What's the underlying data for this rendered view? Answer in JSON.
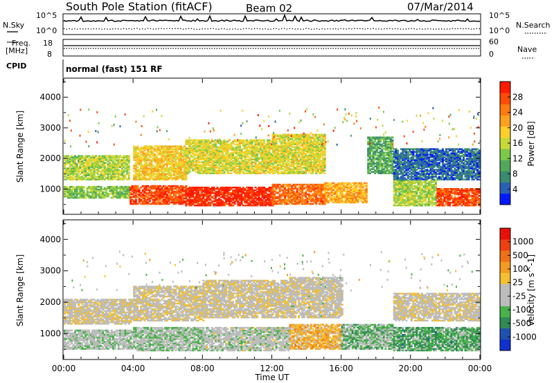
{
  "header": {
    "station": "South Pole Station (fitACF)",
    "beam": "Beam 02",
    "date": "07/Mar/2014"
  },
  "aux_panels": {
    "nsky_label": "N.Sky",
    "nsearch_label": "N.Search",
    "noise_ticks": [
      "10^5",
      "10^0"
    ],
    "freq_label_1": "Freq.",
    "freq_label_2": "[MHz]",
    "freq_ticks": [
      "18",
      "8"
    ],
    "nave_ticks": [
      "60",
      "0"
    ],
    "nave_label": "Nave",
    "cpid_label": "CPID",
    "cpid_value": "normal (fast) 151 RF"
  },
  "colors": {
    "power_scale": [
      "#0018ff",
      "#2a5fb8",
      "#3a8a70",
      "#52a85a",
      "#7cc84a",
      "#c8d838",
      "#ffd028",
      "#ffa020",
      "#ff7a10",
      "#ff4a08",
      "#ff1a00"
    ],
    "velocity_scale": [
      "#1030d0",
      "#2050b0",
      "#2f8a55",
      "#49b24a",
      "#bcbcbc",
      "#bcbcbc",
      "#f2c030",
      "#f39a20",
      "#f07018",
      "#ee4010",
      "#e81008"
    ]
  },
  "chart_data": [
    {
      "type": "heatmap",
      "name": "power",
      "ylabel": "Slant Range [km]",
      "yticks": [
        1000,
        2000,
        3000,
        4000
      ],
      "ylim": [
        200,
        4600
      ],
      "xlim": [
        0,
        24
      ],
      "colorbar_label": "Power [dB]",
      "colorbar_ticks": [
        "28",
        "24",
        "20",
        "16",
        "12",
        "8",
        "4"
      ],
      "colorbar_range": [
        0,
        30
      ],
      "bands": [
        {
          "t0": 0,
          "t1": 3.8,
          "r0": 700,
          "r1": 1100,
          "value": 12
        },
        {
          "t0": 0,
          "t1": 3.8,
          "r0": 1300,
          "r1": 2100,
          "value": 14
        },
        {
          "t0": 3.8,
          "t1": 7,
          "r0": 500,
          "r1": 1100,
          "value": 26
        },
        {
          "t0": 4,
          "t1": 7,
          "r0": 1300,
          "r1": 2400,
          "value": 18
        },
        {
          "t0": 7,
          "t1": 12,
          "r0": 450,
          "r1": 1050,
          "value": 28
        },
        {
          "t0": 7,
          "t1": 12,
          "r0": 1500,
          "r1": 2600,
          "value": 16
        },
        {
          "t0": 12,
          "t1": 15,
          "r0": 500,
          "r1": 1150,
          "value": 24
        },
        {
          "t0": 12,
          "t1": 15,
          "r0": 1500,
          "r1": 2800,
          "value": 16
        },
        {
          "t0": 15,
          "t1": 17.5,
          "r0": 550,
          "r1": 1200,
          "value": 20
        },
        {
          "t0": 17.5,
          "t1": 19,
          "r0": 1500,
          "r1": 2700,
          "value": 10
        },
        {
          "t0": 19,
          "t1": 21.5,
          "r0": 450,
          "r1": 1300,
          "value": 14
        },
        {
          "t0": 19,
          "t1": 24,
          "r0": 1300,
          "r1": 2300,
          "value": 5
        },
        {
          "t0": 21.5,
          "t1": 24,
          "r0": 450,
          "r1": 1000,
          "value": 26
        }
      ]
    },
    {
      "type": "heatmap",
      "name": "velocity",
      "ylabel": "Slant Range [km]",
      "yticks": [
        1000,
        2000,
        3000,
        4000
      ],
      "ylim": [
        200,
        4600
      ],
      "xlim": [
        0,
        24
      ],
      "xlabel": "Time UT",
      "xticks": [
        "00:00",
        "04:00",
        "08:00",
        "12:00",
        "16:00",
        "20:00",
        "00:00"
      ],
      "colorbar_label": "Velocity [m s^-1]",
      "colorbar_ticks": [
        "1000",
        "500",
        "100",
        "25",
        "-25",
        "-100",
        "-500",
        "-1000"
      ],
      "colorbar_range": [
        -1000,
        1000
      ],
      "bands": [
        {
          "t0": 0,
          "t1": 4,
          "r0": 500,
          "r1": 1100,
          "value": -150
        },
        {
          "t0": 0,
          "t1": 4,
          "r0": 1300,
          "r1": 2100,
          "value": 0
        },
        {
          "t0": 4,
          "t1": 8,
          "r0": 450,
          "r1": 1200,
          "value": -200
        },
        {
          "t0": 4,
          "t1": 8,
          "r0": 1400,
          "r1": 2500,
          "value": 0
        },
        {
          "t0": 8,
          "t1": 13,
          "r0": 450,
          "r1": 1200,
          "value": -120
        },
        {
          "t0": 8,
          "t1": 13,
          "r0": 1500,
          "r1": 2700,
          "value": 5
        },
        {
          "t0": 13,
          "t1": 16,
          "r0": 500,
          "r1": 1300,
          "value": 250
        },
        {
          "t0": 13,
          "t1": 16,
          "r0": 1500,
          "r1": 2800,
          "value": -40
        },
        {
          "t0": 16,
          "t1": 19,
          "r0": 500,
          "r1": 1300,
          "value": -300
        },
        {
          "t0": 19,
          "t1": 24,
          "r0": 450,
          "r1": 1200,
          "value": -400
        },
        {
          "t0": 19,
          "t1": 24,
          "r0": 1400,
          "r1": 2300,
          "value": 0
        }
      ]
    }
  ]
}
